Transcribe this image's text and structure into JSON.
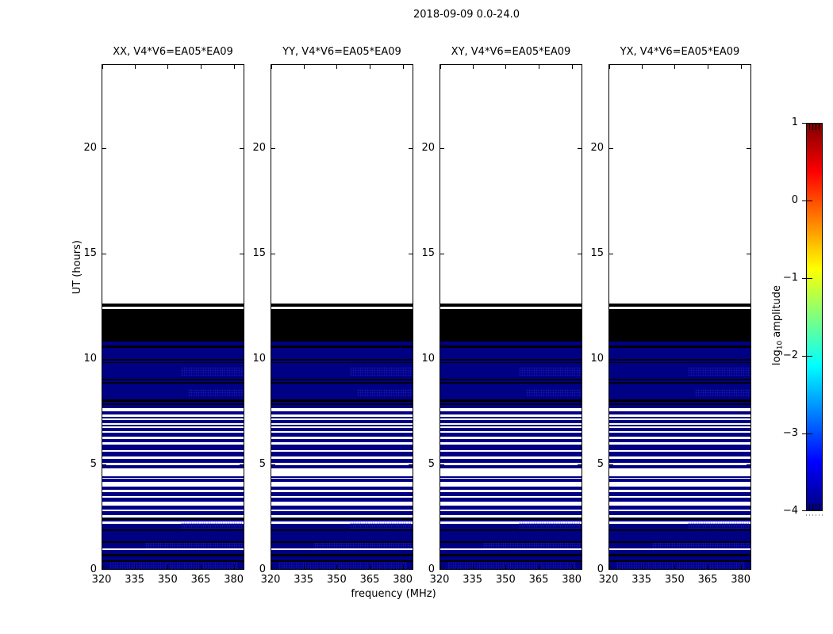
{
  "colors": {
    "navy": "#000084",
    "black": "#000000",
    "white": "#ffffff"
  },
  "chart_data": {
    "type": "heatmap",
    "title": "2018-09-09 0.0-24.0",
    "xlabel": "frequency (MHz)",
    "ylabel": "UT (hours)",
    "x_range": [
      320,
      384.8
    ],
    "y_range": [
      0,
      24
    ],
    "x_tick_values": [
      320,
      335,
      350,
      365,
      380
    ],
    "x_tick_labels": [
      "320",
      "335",
      "350",
      "365",
      "380"
    ],
    "y_tick_values": [
      0,
      5,
      10,
      15,
      20
    ],
    "y_tick_labels": [
      "0",
      "5",
      "10",
      "15",
      "20"
    ],
    "panels": [
      {
        "key": "xx",
        "label": "XX, V4*V6=EA05*EA09"
      },
      {
        "key": "yy",
        "label": "YY, V4*V6=EA05*EA09"
      },
      {
        "key": "xy",
        "label": "XY, V4*V6=EA05*EA09"
      },
      {
        "key": "yx",
        "label": "YX, V4*V6=EA05*EA09"
      }
    ],
    "bands": [
      {
        "from": 0.0,
        "to": 10.87,
        "color": "navy"
      },
      {
        "from": 0.42,
        "to": 0.5,
        "color": "black"
      },
      {
        "from": 0.69,
        "to": 0.78,
        "color": "black"
      },
      {
        "from": 0.99,
        "to": 1.06,
        "color": "white"
      },
      {
        "from": 1.33,
        "to": 1.41,
        "color": "black"
      },
      {
        "from": 1.89,
        "to": 1.97,
        "color": "black"
      },
      {
        "from": 2.22,
        "to": 2.32,
        "color": "white"
      },
      {
        "from": 2.42,
        "to": 2.5,
        "color": "black"
      },
      {
        "from": 2.53,
        "to": 2.62,
        "color": "white"
      },
      {
        "from": 2.82,
        "to": 2.91,
        "color": "white"
      },
      {
        "from": 3.1,
        "to": 3.29,
        "color": "white"
      },
      {
        "from": 3.45,
        "to": 3.54,
        "color": "white"
      },
      {
        "from": 3.72,
        "to": 3.82,
        "color": "white"
      },
      {
        "from": 3.97,
        "to": 4.22,
        "color": "white"
      },
      {
        "from": 4.35,
        "to": 4.41,
        "color": "white"
      },
      {
        "from": 4.48,
        "to": 4.85,
        "color": "white"
      },
      {
        "from": 5.0,
        "to": 5.1,
        "color": "white"
      },
      {
        "from": 5.29,
        "to": 5.42,
        "color": "white"
      },
      {
        "from": 5.63,
        "to": 5.73,
        "color": "white"
      },
      {
        "from": 5.98,
        "to": 6.11,
        "color": "white"
      },
      {
        "from": 6.26,
        "to": 6.36,
        "color": "white"
      },
      {
        "from": 6.55,
        "to": 6.63,
        "color": "white"
      },
      {
        "from": 6.76,
        "to": 6.83,
        "color": "white"
      },
      {
        "from": 6.92,
        "to": 7.01,
        "color": "white"
      },
      {
        "from": 7.14,
        "to": 7.21,
        "color": "white"
      },
      {
        "from": 7.3,
        "to": 7.42,
        "color": "white"
      },
      {
        "from": 7.55,
        "to": 7.71,
        "color": "white"
      },
      {
        "from": 7.86,
        "to": 7.95,
        "color": "black"
      },
      {
        "from": 8.01,
        "to": 8.14,
        "color": "black"
      },
      {
        "from": 8.88,
        "to": 8.96,
        "color": "black"
      },
      {
        "from": 9.03,
        "to": 9.11,
        "color": "black"
      },
      {
        "from": 9.85,
        "to": 9.9,
        "color": "black"
      },
      {
        "from": 9.97,
        "to": 10.05,
        "color": "black"
      },
      {
        "from": 10.57,
        "to": 10.7,
        "color": "black"
      },
      {
        "from": 10.87,
        "to": 12.41,
        "color": "black"
      },
      {
        "from": 12.41,
        "to": 12.53,
        "color": "white"
      },
      {
        "from": 12.53,
        "to": 12.69,
        "color": "black"
      },
      {
        "from": 12.69,
        "to": 24.0,
        "color": "white"
      }
    ],
    "speckles": [
      {
        "h0": 9.25,
        "h1": 9.65,
        "x0": 0.55,
        "x1": 1.0
      },
      {
        "h0": 8.25,
        "h1": 8.6,
        "x0": 0.6,
        "x1": 1.0
      },
      {
        "h0": 2.0,
        "h1": 2.4,
        "x0": 0.55,
        "x1": 0.98
      },
      {
        "h0": 1.05,
        "h1": 1.35,
        "x0": 0.3,
        "x1": 1.0
      },
      {
        "h0": 0.0,
        "h1": 0.4,
        "x0": 0.05,
        "x1": 0.95
      }
    ],
    "colorbar": {
      "label_prefix": "log",
      "label_sub": "10",
      "label_suffix": " amplitude",
      "range": [
        -4,
        1
      ],
      "tick_values": [
        1,
        0,
        -1,
        -2,
        -3,
        -4
      ],
      "tick_labels": [
        "1",
        "0",
        "−1",
        "−2",
        "−3",
        "−4"
      ],
      "colormap": "jet",
      "gradient_top_to_bottom": [
        "#7f0000",
        "#ff0000",
        "#ff8000",
        "#ffff00",
        "#7fff7f",
        "#00ffff",
        "#0080ff",
        "#0000ff",
        "#000080"
      ]
    }
  }
}
